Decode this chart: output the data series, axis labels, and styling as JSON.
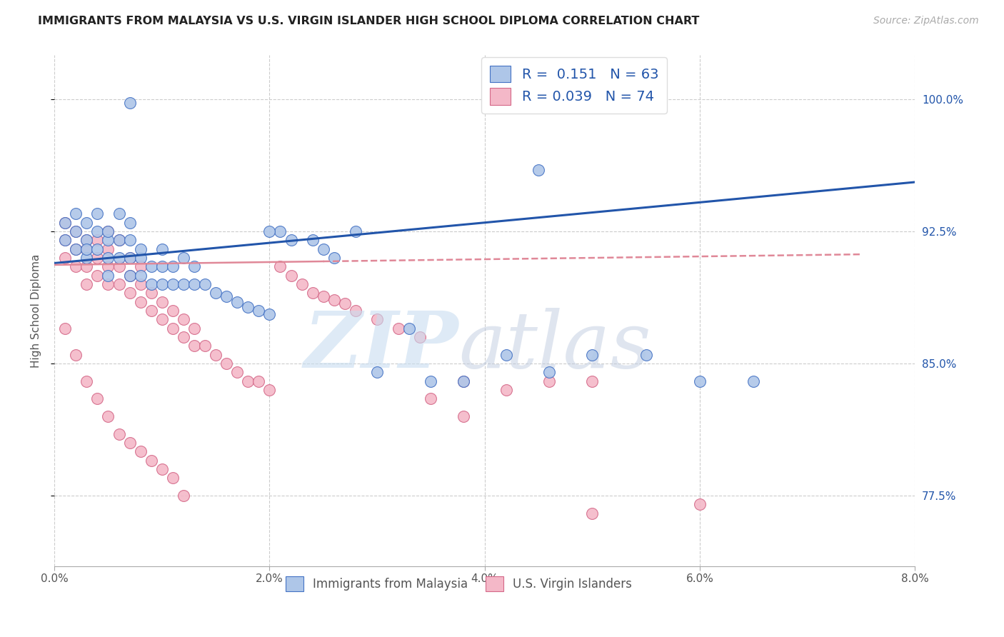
{
  "title": "IMMIGRANTS FROM MALAYSIA VS U.S. VIRGIN ISLANDER HIGH SCHOOL DIPLOMA CORRELATION CHART",
  "source": "Source: ZipAtlas.com",
  "ylabel": "High School Diploma",
  "ytick_labels": [
    "77.5%",
    "85.0%",
    "92.5%",
    "100.0%"
  ],
  "ytick_values": [
    0.775,
    0.85,
    0.925,
    1.0
  ],
  "xmin": 0.0,
  "xmax": 0.08,
  "ymin": 0.735,
  "ymax": 1.025,
  "legend_r1": "R =  0.151",
  "legend_n1": "N = 63",
  "legend_r2": "R = 0.039",
  "legend_n2": "N = 74",
  "color_blue_fill": "#aec6e8",
  "color_blue_edge": "#4472c4",
  "color_pink_fill": "#f4b8c8",
  "color_pink_edge": "#d46888",
  "color_blue_line": "#2255aa",
  "color_pink_line": "#e08898",
  "color_axis_right": "#2255aa",
  "blue_scatter_x": [
    0.001,
    0.001,
    0.002,
    0.002,
    0.002,
    0.003,
    0.003,
    0.003,
    0.003,
    0.004,
    0.004,
    0.004,
    0.005,
    0.005,
    0.005,
    0.005,
    0.006,
    0.006,
    0.006,
    0.007,
    0.007,
    0.007,
    0.007,
    0.008,
    0.008,
    0.008,
    0.009,
    0.009,
    0.01,
    0.01,
    0.01,
    0.011,
    0.011,
    0.012,
    0.012,
    0.013,
    0.013,
    0.014,
    0.015,
    0.016,
    0.017,
    0.018,
    0.019,
    0.02,
    0.021,
    0.022,
    0.024,
    0.025,
    0.026,
    0.028,
    0.03,
    0.033,
    0.035,
    0.038,
    0.042,
    0.046,
    0.05,
    0.055,
    0.06,
    0.065,
    0.045,
    0.02,
    0.007
  ],
  "blue_scatter_y": [
    0.92,
    0.93,
    0.925,
    0.915,
    0.935,
    0.91,
    0.92,
    0.93,
    0.915,
    0.915,
    0.925,
    0.935,
    0.9,
    0.91,
    0.92,
    0.925,
    0.91,
    0.92,
    0.935,
    0.9,
    0.91,
    0.92,
    0.93,
    0.9,
    0.91,
    0.915,
    0.895,
    0.905,
    0.895,
    0.905,
    0.915,
    0.895,
    0.905,
    0.895,
    0.91,
    0.895,
    0.905,
    0.895,
    0.89,
    0.888,
    0.885,
    0.882,
    0.88,
    0.878,
    0.925,
    0.92,
    0.92,
    0.915,
    0.91,
    0.925,
    0.845,
    0.87,
    0.84,
    0.84,
    0.855,
    0.845,
    0.855,
    0.855,
    0.84,
    0.84,
    0.96,
    0.925,
    0.998
  ],
  "pink_scatter_x": [
    0.001,
    0.001,
    0.001,
    0.002,
    0.002,
    0.002,
    0.003,
    0.003,
    0.003,
    0.003,
    0.004,
    0.004,
    0.004,
    0.005,
    0.005,
    0.005,
    0.005,
    0.006,
    0.006,
    0.006,
    0.007,
    0.007,
    0.007,
    0.008,
    0.008,
    0.008,
    0.009,
    0.009,
    0.01,
    0.01,
    0.011,
    0.011,
    0.012,
    0.012,
    0.013,
    0.013,
    0.014,
    0.015,
    0.016,
    0.017,
    0.018,
    0.019,
    0.02,
    0.021,
    0.022,
    0.023,
    0.024,
    0.025,
    0.026,
    0.027,
    0.028,
    0.03,
    0.032,
    0.034,
    0.038,
    0.042,
    0.046,
    0.05,
    0.001,
    0.002,
    0.003,
    0.004,
    0.005,
    0.006,
    0.007,
    0.008,
    0.009,
    0.01,
    0.011,
    0.012,
    0.035,
    0.038,
    0.05,
    0.06
  ],
  "pink_scatter_y": [
    0.92,
    0.91,
    0.93,
    0.905,
    0.915,
    0.925,
    0.905,
    0.915,
    0.895,
    0.92,
    0.9,
    0.91,
    0.92,
    0.895,
    0.905,
    0.915,
    0.925,
    0.895,
    0.905,
    0.92,
    0.89,
    0.9,
    0.91,
    0.885,
    0.895,
    0.905,
    0.88,
    0.89,
    0.875,
    0.885,
    0.87,
    0.88,
    0.865,
    0.875,
    0.86,
    0.87,
    0.86,
    0.855,
    0.85,
    0.845,
    0.84,
    0.84,
    0.835,
    0.905,
    0.9,
    0.895,
    0.89,
    0.888,
    0.886,
    0.884,
    0.88,
    0.875,
    0.87,
    0.865,
    0.84,
    0.835,
    0.84,
    0.84,
    0.87,
    0.855,
    0.84,
    0.83,
    0.82,
    0.81,
    0.805,
    0.8,
    0.795,
    0.79,
    0.785,
    0.775,
    0.83,
    0.82,
    0.765,
    0.77
  ],
  "blue_line_x": [
    0.0,
    0.08
  ],
  "blue_line_y": [
    0.907,
    0.953
  ],
  "pink_line_x": [
    0.0,
    0.075
  ],
  "pink_line_y": [
    0.906,
    0.912
  ]
}
